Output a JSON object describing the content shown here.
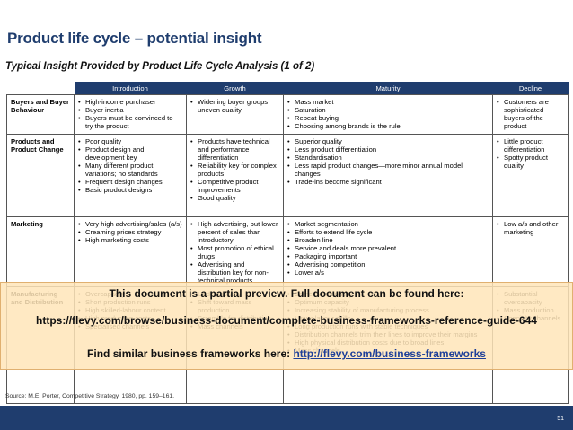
{
  "header": {
    "title": "Product life cycle – potential insight",
    "subtitle": "Typical Insight Provided by Product Life Cycle Analysis (1 of 2)"
  },
  "table": {
    "columns": [
      "Introduction",
      "Growth",
      "Maturity",
      "Decline"
    ],
    "rows": [
      {
        "label": "Buyers and Buyer Behaviour",
        "cells": [
          [
            "High-income purchaser",
            "Buyer inertia",
            "Buyers must be convinced to try the product"
          ],
          [
            "Widening buyer groups uneven quality"
          ],
          [
            "Mass market",
            "Saturation",
            "Repeat buying",
            "Choosing among brands is the rule"
          ],
          [
            "Customers are sophisticated buyers of the product"
          ]
        ]
      },
      {
        "label": "Products and Product Change",
        "cells": [
          [
            "Poor quality",
            "Product design and development key",
            "Many different product variations; no standards",
            "Frequent design changes",
            "Basic product designs"
          ],
          [
            "Products have technical and performance differentiation",
            "Reliability key for complex products",
            "Competitive product improvements",
            "Good quality"
          ],
          [
            "Superior quality",
            "Less product differentiation",
            "Standardisation",
            "Less rapid product changes—more minor annual model changes",
            "Trade-ins become significant"
          ],
          [
            "Little product differentiation",
            "Spotty product quality"
          ]
        ]
      },
      {
        "label": "Marketing",
        "cells": [
          [
            "Very high advertising/sales (a/s)",
            "Creaming prices strategy",
            "High marketing costs"
          ],
          [
            "High advertising, but lower percent of sales than introductory",
            "Most promotion of ethical drugs",
            "Advertising and distribution key for non-technical products"
          ],
          [
            "Market segmentation",
            "Efforts to extend life cycle",
            "Broaden line",
            "Service and deals more prevalent",
            "Packaging important",
            "Advertising competition",
            "Lower a/s"
          ],
          [
            "Low a/s and other marketing"
          ]
        ]
      },
      {
        "label": "Manufacturing and Distribution",
        "cells": [
          [
            "Overcapacity",
            "Short production runs",
            "High skilled-labour content",
            "High production costs",
            "Specialised channels"
          ],
          [
            "Undercapacity",
            "Shift toward mass production",
            "Scramble for distribution",
            "Mass channels"
          ],
          [
            "Some overcapacity",
            "Optimum capacity",
            "Increasing stability of manufacturing process",
            "Lower labour skills",
            "Long production runs with stable techniques",
            "Distribution channels trim their lines to improve their margins",
            "High physical distribution costs due to broad lines",
            "Mass channels"
          ],
          [
            "Substantial overcapacity",
            "Mass production",
            "Specialty channels"
          ]
        ]
      }
    ]
  },
  "overlay": {
    "line1": "This document is a partial preview.  Full document can be found here:",
    "url": "https://flevy.com/browse/business-document/complete-business-frameworks-reference-guide-644",
    "line3_prefix": "Find similar business frameworks here: ",
    "line3_link": "http://flevy.com/business-frameworks"
  },
  "source": "Source:    M.E. Porter, Competitive Strategy, 1980, pp. 159–161.",
  "footer": {
    "page_number": "51"
  },
  "colors": {
    "brand_navy": "#1f3d6e",
    "overlay_bg": "#ffe5b9",
    "link": "#1e3f99"
  }
}
